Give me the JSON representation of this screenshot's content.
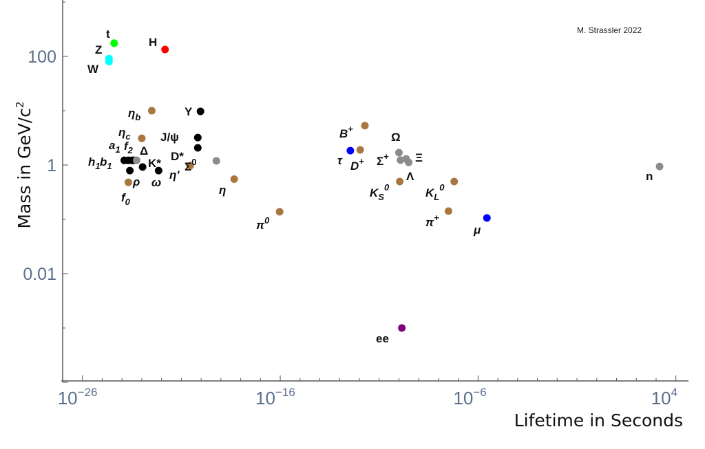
{
  "chart_data": {
    "type": "scatter",
    "title": "",
    "credit": "M. Strassler 2022",
    "xlabel": "Lifetime in Seconds",
    "ylabel": "Mass in GeV/c",
    "ylabel_sup": "2",
    "x_scale": "log",
    "y_scale": "log",
    "xlim": [
      1e-27,
      40000.0
    ],
    "ylim": [
      0.0001,
      1000.0
    ],
    "grid": false,
    "legend": "none",
    "x_ticks": [
      {
        "value": 1e-26,
        "base": "10",
        "exp": "−26"
      },
      {
        "value": 1e-16,
        "base": "10",
        "exp": "−16"
      },
      {
        "value": 1e-06,
        "base": "10",
        "exp": "−6"
      },
      {
        "value": 10000.0,
        "base": "10",
        "exp": "4"
      }
    ],
    "y_ticks": [
      {
        "value": 100,
        "label": "100"
      },
      {
        "value": 1,
        "label": "1"
      },
      {
        "value": 0.01,
        "label": "0.01"
      }
    ],
    "colors": {
      "meson": "#a8773f",
      "resonance": "#000000",
      "baryon": "#8c8c8c",
      "lepton": "#0000ff",
      "weak_boson": "#00ffff",
      "top": "#00ff00",
      "higgs": "#ff0000",
      "positronium": "#800080"
    },
    "points": [
      {
        "label": "t",
        "sub": "",
        "sup": "",
        "lifetime": 4e-25,
        "mass": 175,
        "color": "#00ff00"
      },
      {
        "label": "Z",
        "sub": "",
        "sup": "",
        "lifetime": 2.2e-25,
        "mass": 91,
        "color": "#00ffff"
      },
      {
        "label": "W",
        "sub": "",
        "sup": "",
        "lifetime": 2.2e-25,
        "mass": 80,
        "color": "#00ffff"
      },
      {
        "label": "H",
        "sub": "",
        "sup": "",
        "lifetime": 1.5e-22,
        "mass": 134,
        "color": "#ff0000"
      },
      {
        "label": "η",
        "sub": "b",
        "sup": "",
        "lifetime": 3.2e-23,
        "mass": 10,
        "color": "#a8773f"
      },
      {
        "label": "Υ",
        "sub": "",
        "sup": "",
        "lifetime": 9.3e-21,
        "mass": 9.7,
        "color": "#000000"
      },
      {
        "label": "η",
        "sub": "c",
        "sup": "",
        "lifetime": 1e-23,
        "mass": 3.1,
        "color": "#a8773f"
      },
      {
        "label": "J/ψ",
        "sub": "",
        "sup": "",
        "lifetime": 6.8e-21,
        "mass": 3.2,
        "color": "#000000"
      },
      {
        "label": "D*",
        "sub": "",
        "sup": "",
        "lifetime": 6.8e-21,
        "mass": 2.07,
        "color": "#000000"
      },
      {
        "label": "Σ",
        "sub": "",
        "sup": "0",
        "lifetime": 5.9e-20,
        "mass": 1.19,
        "color": "#8c8c8c"
      },
      {
        "label": "η'",
        "sub": "",
        "sup": "",
        "lifetime": 2.8e-21,
        "mass": 0.97,
        "color": "#a8773f"
      },
      {
        "label": "η",
        "sub": "",
        "sup": "",
        "lifetime": 4.7e-19,
        "mass": 0.55,
        "color": "#a8773f"
      },
      {
        "label": "h",
        "sub": "1",
        "sup": "",
        "lifetime": 1.3e-24,
        "mass": 1.22,
        "color": "#000000"
      },
      {
        "label": "b",
        "sub": "1",
        "sup": "",
        "lifetime": 2.1e-24,
        "mass": 1.22,
        "color": "#000000"
      },
      {
        "label": "a",
        "sub": "1",
        "sup": "",
        "lifetime": 3.2e-24,
        "mass": 1.22,
        "color": "#000000"
      },
      {
        "label": "f",
        "sub": "2",
        "sup": "",
        "lifetime": 4e-24,
        "mass": 1.22,
        "color": "#000000"
      },
      {
        "label": "Δ",
        "sub": "",
        "sup": "",
        "lifetime": 5.5e-24,
        "mass": 1.22,
        "color": "#8c8c8c"
      },
      {
        "label": "ρ",
        "sub": "",
        "sup": "",
        "lifetime": 2.5e-24,
        "mass": 0.79,
        "color": "#000000"
      },
      {
        "label": "K*",
        "sub": "",
        "sup": "",
        "lifetime": 1.1e-23,
        "mass": 0.92,
        "color": "#000000"
      },
      {
        "label": "ω",
        "sub": "",
        "sup": "",
        "lifetime": 7.1e-23,
        "mass": 0.79,
        "color": "#000000"
      },
      {
        "label": "f",
        "sub": "0",
        "sup": "",
        "lifetime": 2.1e-24,
        "mass": 0.48,
        "color": "#a8773f"
      },
      {
        "label": "π",
        "sub": "",
        "sup": "0",
        "lifetime": 9.3e-17,
        "mass": 0.138,
        "color": "#a8773f"
      },
      {
        "label": "B",
        "sub": "",
        "sup": "+",
        "lifetime": 1.9e-12,
        "mass": 5.3,
        "color": "#a8773f"
      },
      {
        "label": "τ",
        "sub": "",
        "sup": "",
        "lifetime": 3.5e-13,
        "mass": 1.84,
        "color": "#0000ff"
      },
      {
        "label": "D",
        "sub": "",
        "sup": "+",
        "lifetime": 1.1e-12,
        "mass": 1.9,
        "color": "#a8773f"
      },
      {
        "label": "Ω",
        "sub": "",
        "sup": "",
        "lifetime": 1e-10,
        "mass": 1.69,
        "color": "#8c8c8c"
      },
      {
        "label": "Σ",
        "sub": "",
        "sup": "+",
        "lifetime": 1.2e-10,
        "mass": 1.23,
        "color": "#8c8c8c"
      },
      {
        "label": "Ξ",
        "sub": "",
        "sup": "",
        "lifetime": 2.3e-10,
        "mass": 1.3,
        "color": "#8c8c8c"
      },
      {
        "label": "Λ",
        "sub": "",
        "sup": "",
        "lifetime": 3.1e-10,
        "mass": 1.12,
        "color": "#8c8c8c"
      },
      {
        "label": "K",
        "sub": "S",
        "sup": "0",
        "lifetime": 1.1e-10,
        "mass": 0.497,
        "color": "#a8773f"
      },
      {
        "label": "K",
        "sub": "L",
        "sup": "0",
        "lifetime": 6.2e-08,
        "mass": 0.497,
        "color": "#a8773f"
      },
      {
        "label": "π",
        "sub": "",
        "sup": "+",
        "lifetime": 3.2e-08,
        "mass": 0.142,
        "color": "#a8773f"
      },
      {
        "label": "μ",
        "sub": "",
        "sup": "",
        "lifetime": 2.8e-06,
        "mass": 0.106,
        "color": "#0000ff"
      },
      {
        "label": "ee",
        "sub": "",
        "sup": "",
        "lifetime": 1.4e-10,
        "mass": 0.001,
        "color": "#800080"
      },
      {
        "label": "n",
        "sub": "",
        "sup": "",
        "lifetime": 1500.0,
        "mass": 0.94,
        "color": "#8c8c8c"
      }
    ]
  }
}
